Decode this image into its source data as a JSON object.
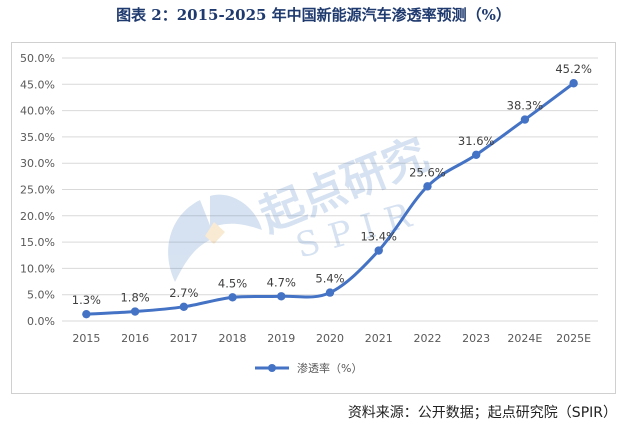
{
  "figure_title": "图表 2：2015-2025 年中国新能源汽车渗透率预测（%）",
  "source_note": "资料来源：公开数据；起点研究院（SPIR）",
  "watermark": {
    "text_cn": "起点研究",
    "text_en": "S P I R"
  },
  "colors": {
    "line": "#4472c4",
    "grid": "#d9d9d9",
    "title": "#1f3a6e"
  },
  "chart_data": {
    "type": "line",
    "title": "",
    "xlabel": "",
    "ylabel": "",
    "ylim": [
      0,
      50
    ],
    "y_ticks": [
      "0.0%",
      "5.0%",
      "10.0%",
      "15.0%",
      "20.0%",
      "25.0%",
      "30.0%",
      "35.0%",
      "40.0%",
      "45.0%",
      "50.0%"
    ],
    "categories": [
      "2015",
      "2016",
      "2017",
      "2018",
      "2019",
      "2020",
      "2021",
      "2022",
      "2023",
      "2024E",
      "2025E"
    ],
    "series": [
      {
        "name": "渗透率（%）",
        "values": [
          1.3,
          1.8,
          2.7,
          4.5,
          4.7,
          5.4,
          13.4,
          25.6,
          31.6,
          38.3,
          45.2
        ],
        "labels": [
          "1.3%",
          "1.8%",
          "2.7%",
          "4.5%",
          "4.7%",
          "5.4%",
          "13.4%",
          "25.6%",
          "31.6%",
          "38.3%",
          "45.2%"
        ]
      }
    ],
    "grid": true,
    "legend": "bottom"
  }
}
